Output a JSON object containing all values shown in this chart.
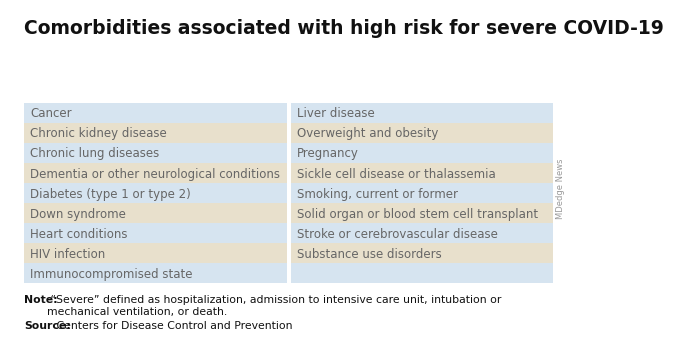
{
  "title": "Comorbidities associated with high risk for severe COVID-19",
  "left_col": [
    "Cancer",
    "Chronic kidney disease",
    "Chronic lung diseases",
    "Dementia or other neurological conditions",
    "Diabetes (type 1 or type 2)",
    "Down syndrome",
    "Heart conditions",
    "HIV infection",
    "Immunocompromised state"
  ],
  "right_col": [
    "Liver disease",
    "Overweight and obesity",
    "Pregnancy",
    "Sickle cell disease or thalassemia",
    "Smoking, current or former",
    "Solid organ or blood stem cell transplant",
    "Stroke or cerebrovascular disease",
    "Substance use disorders",
    ""
  ],
  "note_bold": "Note:",
  "note_text": " “Severe” defined as hospitalization, admission to intensive care unit, intubation or\nmechanical ventilation, or death.",
  "source_bold": "Source:",
  "source_text": " Centers for Disease Control and Prevention",
  "watermark": "MDedge News",
  "color_light_blue": "#d6e4f0",
  "color_light_tan": "#e8e0cc",
  "color_text": "#666666",
  "color_title": "#111111",
  "title_fontsize": 13.5,
  "cell_fontsize": 8.5,
  "note_fontsize": 7.8,
  "bg_color": "#ffffff"
}
